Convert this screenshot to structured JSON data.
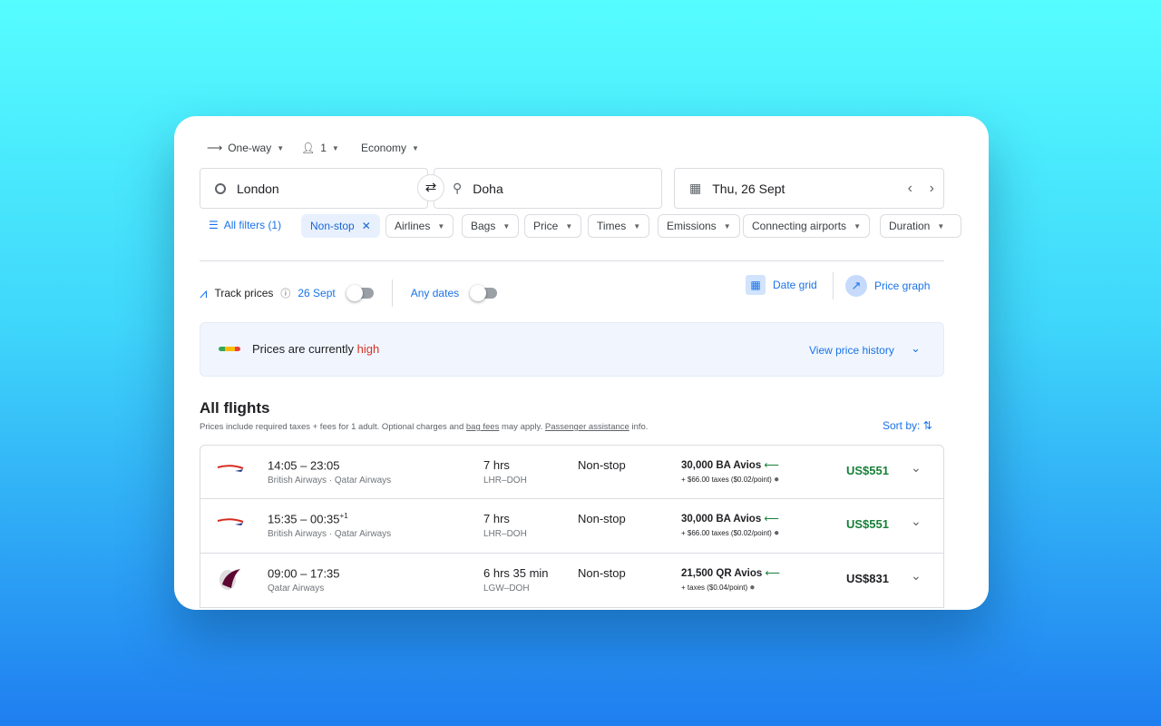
{
  "search": {
    "trip_type": "One-way",
    "passengers": "1",
    "cabin": "Economy",
    "origin": "London",
    "destination": "Doha",
    "date": "Thu, 26 Sept"
  },
  "filters": {
    "all_filters": "All filters (1)",
    "chips": [
      "Non-stop",
      "Airlines",
      "Bags",
      "Price",
      "Times",
      "Emissions",
      "Connecting airports",
      "Duration"
    ]
  },
  "tracking": {
    "track_prices": "Track prices",
    "date": "26 Sept",
    "any_dates": "Any dates",
    "date_grid": "Date grid",
    "price_graph": "Price graph"
  },
  "insight": {
    "text": "Prices are currently ",
    "level": "high",
    "link": "View price history"
  },
  "results": {
    "title": "All flights",
    "note_prefix": "Prices include required taxes + fees for 1 adult. Optional charges and ",
    "bag_fees": "bag fees",
    "note_mid": " may apply. ",
    "passenger_assistance": "Passenger assistance",
    "note_suffix": " info.",
    "sort_by": "Sort by:",
    "flights": [
      {
        "airline_logo": "british-airways",
        "times": "14:05 – 23:05",
        "plus_day": "",
        "airlines": "British Airways · Qatar Airways",
        "duration": "7 hrs",
        "route": "LHR–DOH",
        "stops": "Non-stop",
        "points": "30,000 BA Avios",
        "taxes": "+ $66.00 taxes ($0.02/point)",
        "price": "US$551",
        "price_color": "#188038"
      },
      {
        "airline_logo": "british-airways",
        "times": "15:35 – 00:35",
        "plus_day": "+1",
        "airlines": "British Airways · Qatar Airways",
        "duration": "7 hrs",
        "route": "LHR–DOH",
        "stops": "Non-stop",
        "points": "30,000 BA Avios",
        "taxes": "+ $66.00 taxes ($0.02/point)",
        "price": "US$551",
        "price_color": "#188038"
      },
      {
        "airline_logo": "qatar-airways",
        "times": "09:00 – 17:35",
        "plus_day": "",
        "airlines": "Qatar Airways",
        "duration": "6 hrs 35 min",
        "route": "LGW–DOH",
        "stops": "Non-stop",
        "points": "21,500 QR Avios",
        "taxes": "+ taxes ($0.04/point)",
        "price": "US$831",
        "price_color": "#202124"
      }
    ]
  }
}
